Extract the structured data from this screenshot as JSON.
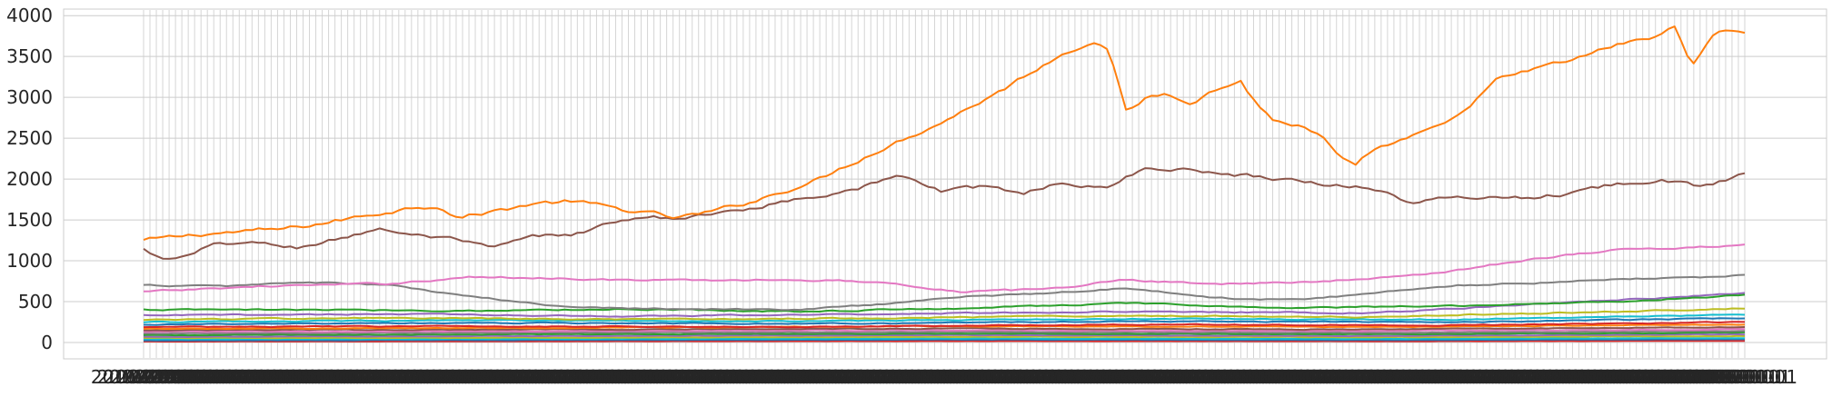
{
  "chart_data": {
    "type": "line",
    "title": "",
    "xlabel": "",
    "ylabel": "",
    "ylim": [
      -200,
      4080
    ],
    "yticks": [
      0,
      500,
      1000,
      1500,
      2000,
      2500,
      3000,
      3500,
      4000
    ],
    "x_count": 252,
    "grid": true,
    "legend": "none",
    "series": [
      {
        "color": "#ff7f0e",
        "anchors": [
          [
            0,
            1250
          ],
          [
            8,
            1290
          ],
          [
            15,
            1330
          ],
          [
            25,
            1360
          ],
          [
            35,
            1390
          ],
          [
            45,
            1470
          ],
          [
            55,
            1560
          ],
          [
            65,
            1650
          ],
          [
            72,
            1680
          ],
          [
            77,
            1530
          ],
          [
            85,
            1600
          ],
          [
            95,
            1700
          ],
          [
            105,
            1730
          ],
          [
            115,
            1640
          ],
          [
            125,
            1570
          ],
          [
            130,
            1520
          ],
          [
            140,
            1610
          ],
          [
            150,
            1750
          ],
          [
            165,
            2000
          ],
          [
            180,
            2370
          ],
          [
            195,
            2700
          ],
          [
            210,
            3100
          ],
          [
            218,
            3350
          ],
          [
            225,
            3550
          ],
          [
            232,
            3700
          ],
          [
            236,
            3550
          ],
          [
            240,
            2800
          ],
          [
            245,
            3000
          ],
          [
            250,
            3050
          ],
          [
            256,
            2950
          ],
          [
            262,
            3100
          ],
          [
            268,
            3200
          ],
          [
            272,
            2900
          ],
          [
            276,
            2720
          ],
          [
            282,
            2650
          ],
          [
            288,
            2500
          ],
          [
            292,
            2250
          ],
          [
            296,
            2130
          ],
          [
            300,
            2350
          ],
          [
            306,
            2450
          ],
          [
            312,
            2550
          ],
          [
            320,
            2720
          ],
          [
            330,
            3200
          ],
          [
            340,
            3350
          ],
          [
            350,
            3470
          ],
          [
            360,
            3650
          ],
          [
            368,
            3720
          ],
          [
            374,
            3860
          ],
          [
            378,
            3420
          ],
          [
            384,
            3780
          ],
          [
            388,
            3830
          ],
          [
            391,
            3800
          ]
        ],
        "noise": 45
      },
      {
        "color": "#8c564b",
        "anchors": [
          [
            0,
            1140
          ],
          [
            5,
            1000
          ],
          [
            12,
            1060
          ],
          [
            18,
            1220
          ],
          [
            28,
            1210
          ],
          [
            38,
            1160
          ],
          [
            50,
            1300
          ],
          [
            58,
            1400
          ],
          [
            65,
            1320
          ],
          [
            75,
            1260
          ],
          [
            85,
            1150
          ],
          [
            95,
            1290
          ],
          [
            105,
            1320
          ],
          [
            115,
            1480
          ],
          [
            125,
            1520
          ],
          [
            135,
            1540
          ],
          [
            145,
            1620
          ],
          [
            160,
            1760
          ],
          [
            175,
            1900
          ],
          [
            185,
            2040
          ],
          [
            195,
            1850
          ],
          [
            205,
            1900
          ],
          [
            215,
            1840
          ],
          [
            225,
            1960
          ],
          [
            235,
            1880
          ],
          [
            245,
            2150
          ],
          [
            260,
            2090
          ],
          [
            275,
            2020
          ],
          [
            290,
            1930
          ],
          [
            300,
            1900
          ],
          [
            310,
            1700
          ],
          [
            320,
            1780
          ],
          [
            330,
            1780
          ],
          [
            340,
            1780
          ],
          [
            350,
            1840
          ],
          [
            360,
            1950
          ],
          [
            370,
            2000
          ],
          [
            380,
            1900
          ],
          [
            391,
            2060
          ]
        ],
        "noise": 40
      },
      {
        "color": "#e377c2",
        "anchors": [
          [
            0,
            620
          ],
          [
            30,
            690
          ],
          [
            60,
            720
          ],
          [
            80,
            800
          ],
          [
            100,
            790
          ],
          [
            120,
            760
          ],
          [
            140,
            760
          ],
          [
            160,
            770
          ],
          [
            180,
            740
          ],
          [
            200,
            620
          ],
          [
            220,
            650
          ],
          [
            240,
            770
          ],
          [
            260,
            720
          ],
          [
            280,
            730
          ],
          [
            300,
            780
          ],
          [
            320,
            880
          ],
          [
            340,
            1030
          ],
          [
            360,
            1140
          ],
          [
            375,
            1150
          ],
          [
            391,
            1200
          ]
        ],
        "noise": 18
      },
      {
        "color": "#7f7f7f",
        "anchors": [
          [
            0,
            700
          ],
          [
            20,
            690
          ],
          [
            40,
            740
          ],
          [
            60,
            700
          ],
          [
            80,
            560
          ],
          [
            100,
            450
          ],
          [
            120,
            420
          ],
          [
            140,
            410
          ],
          [
            160,
            400
          ],
          [
            180,
            470
          ],
          [
            200,
            560
          ],
          [
            220,
            600
          ],
          [
            240,
            670
          ],
          [
            260,
            550
          ],
          [
            280,
            520
          ],
          [
            300,
            600
          ],
          [
            320,
            700
          ],
          [
            340,
            730
          ],
          [
            360,
            780
          ],
          [
            375,
            790
          ],
          [
            391,
            820
          ]
        ],
        "noise": 15
      },
      {
        "color": "#2ca02c",
        "anchors": [
          [
            0,
            400
          ],
          [
            40,
            400
          ],
          [
            80,
            390
          ],
          [
            120,
            410
          ],
          [
            160,
            380
          ],
          [
            200,
            420
          ],
          [
            240,
            480
          ],
          [
            280,
            420
          ],
          [
            320,
            450
          ],
          [
            360,
            500
          ],
          [
            391,
            580
          ]
        ],
        "noise": 14
      },
      {
        "color": "#9467bd",
        "anchors": [
          [
            0,
            330
          ],
          [
            60,
            350
          ],
          [
            120,
            320
          ],
          [
            180,
            350
          ],
          [
            240,
            380
          ],
          [
            300,
            360
          ],
          [
            340,
            470
          ],
          [
            391,
            600
          ]
        ],
        "noise": 12
      },
      {
        "color": "#bcbd22",
        "anchors": [
          [
            0,
            280
          ],
          [
            60,
            300
          ],
          [
            120,
            280
          ],
          [
            180,
            300
          ],
          [
            240,
            330
          ],
          [
            300,
            310
          ],
          [
            360,
            380
          ],
          [
            391,
            420
          ]
        ],
        "noise": 12
      },
      {
        "color": "#17becf",
        "anchors": [
          [
            0,
            250
          ],
          [
            80,
            270
          ],
          [
            160,
            260
          ],
          [
            240,
            290
          ],
          [
            320,
            280
          ],
          [
            391,
            340
          ]
        ],
        "noise": 10
      },
      {
        "color": "#1f77b4",
        "anchors": [
          [
            0,
            220
          ],
          [
            80,
            240
          ],
          [
            160,
            230
          ],
          [
            240,
            260
          ],
          [
            320,
            250
          ],
          [
            391,
            300
          ]
        ],
        "noise": 10
      },
      {
        "color": "#d62728",
        "anchors": [
          [
            0,
            190
          ],
          [
            80,
            200
          ],
          [
            160,
            190
          ],
          [
            240,
            220
          ],
          [
            320,
            210
          ],
          [
            391,
            250
          ]
        ],
        "noise": 9
      },
      {
        "color": "#ff7f0e",
        "anchors": [
          [
            0,
            170
          ],
          [
            100,
            180
          ],
          [
            200,
            200
          ],
          [
            300,
            190
          ],
          [
            391,
            220
          ]
        ],
        "noise": 8
      },
      {
        "color": "#8c564b",
        "anchors": [
          [
            0,
            150
          ],
          [
            100,
            160
          ],
          [
            200,
            170
          ],
          [
            300,
            160
          ],
          [
            391,
            190
          ]
        ],
        "noise": 8
      },
      {
        "color": "#e377c2",
        "anchors": [
          [
            0,
            130
          ],
          [
            100,
            140
          ],
          [
            200,
            150
          ],
          [
            300,
            140
          ],
          [
            391,
            160
          ]
        ],
        "noise": 7
      },
      {
        "color": "#7f7f7f",
        "anchors": [
          [
            0,
            110
          ],
          [
            100,
            120
          ],
          [
            200,
            130
          ],
          [
            300,
            120
          ],
          [
            391,
            140
          ]
        ],
        "noise": 6
      },
      {
        "color": "#2ca02c",
        "anchors": [
          [
            0,
            90
          ],
          [
            100,
            100
          ],
          [
            200,
            110
          ],
          [
            300,
            100
          ],
          [
            391,
            120
          ]
        ],
        "noise": 6
      },
      {
        "color": "#9467bd",
        "anchors": [
          [
            0,
            70
          ],
          [
            100,
            80
          ],
          [
            200,
            90
          ],
          [
            300,
            80
          ],
          [
            391,
            100
          ]
        ],
        "noise": 5
      },
      {
        "color": "#bcbd22",
        "anchors": [
          [
            0,
            55
          ],
          [
            100,
            60
          ],
          [
            200,
            70
          ],
          [
            300,
            65
          ],
          [
            391,
            80
          ]
        ],
        "noise": 5
      },
      {
        "color": "#17becf",
        "anchors": [
          [
            0,
            40
          ],
          [
            100,
            45
          ],
          [
            200,
            50
          ],
          [
            300,
            45
          ],
          [
            391,
            55
          ]
        ],
        "noise": 4
      },
      {
        "color": "#1f77b4",
        "anchors": [
          [
            0,
            25
          ],
          [
            100,
            30
          ],
          [
            200,
            35
          ],
          [
            300,
            30
          ],
          [
            391,
            40
          ]
        ],
        "noise": 3
      },
      {
        "color": "#d62728",
        "anchors": [
          [
            0,
            12
          ],
          [
            100,
            15
          ],
          [
            200,
            18
          ],
          [
            300,
            15
          ],
          [
            391,
            20
          ]
        ],
        "noise": 2
      }
    ]
  }
}
